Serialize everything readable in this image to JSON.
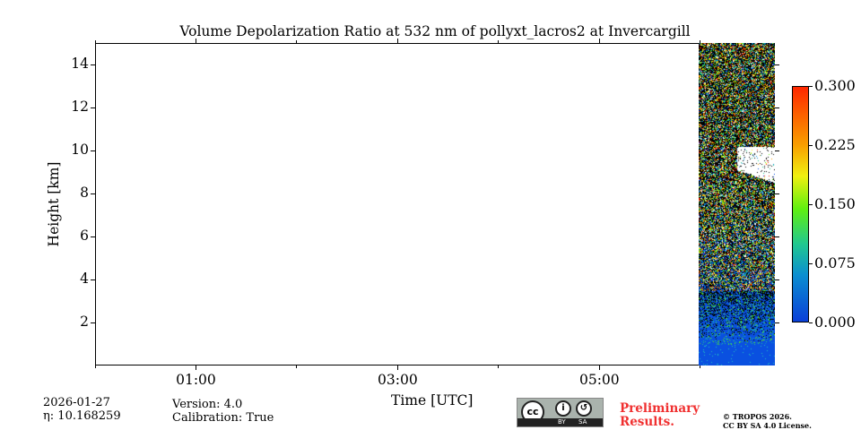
{
  "chart_data": {
    "type": "heatmap",
    "title": "Volume Depolarization Ratio at 532 nm of pollyxt_lacros2 at Invercargill",
    "xlabel": "Time [UTC]",
    "ylabel": "Height [km]",
    "x_ticks": [
      "01:00",
      "03:00",
      "05:00"
    ],
    "x_tick_hours": [
      1,
      3,
      5
    ],
    "x_minor_tick_hours": [
      0,
      2,
      4,
      6
    ],
    "xlim_hours": [
      0,
      6.74
    ],
    "y_ticks": [
      "2",
      "4",
      "6",
      "8",
      "10",
      "12",
      "14"
    ],
    "y_tick_values": [
      2,
      4,
      6,
      8,
      10,
      12,
      14
    ],
    "ylim_km": [
      0,
      15
    ],
    "data_time_range_hours": [
      5.98,
      6.74
    ],
    "features": {
      "cloud_saturated_km": [
        8.5,
        10.2
      ],
      "low_depol_layer_top_km": 1.0,
      "noise_above_km": 3.5
    },
    "colorbar": {
      "range": [
        0,
        0.3
      ],
      "ticks": [
        "0.000",
        "0.075",
        "0.150",
        "0.225",
        "0.300"
      ],
      "tick_values": [
        0,
        0.075,
        0.15,
        0.225,
        0.3
      ],
      "colormap": "jet-like"
    },
    "grid": false
  },
  "footer": {
    "date": "2026-01-27",
    "eta": "η: 10.168259",
    "version": "Version: 4.0",
    "calibration": "Calibration: True",
    "preliminary_line1": "Preliminary",
    "preliminary_line2": "Results.",
    "copyright_line1": "© TROPOS 2026.",
    "copyright_line2": "CC BY SA 4.0 License.",
    "cc_logo": {
      "cc": "cc",
      "by": "BY",
      "sa": "SA"
    }
  }
}
